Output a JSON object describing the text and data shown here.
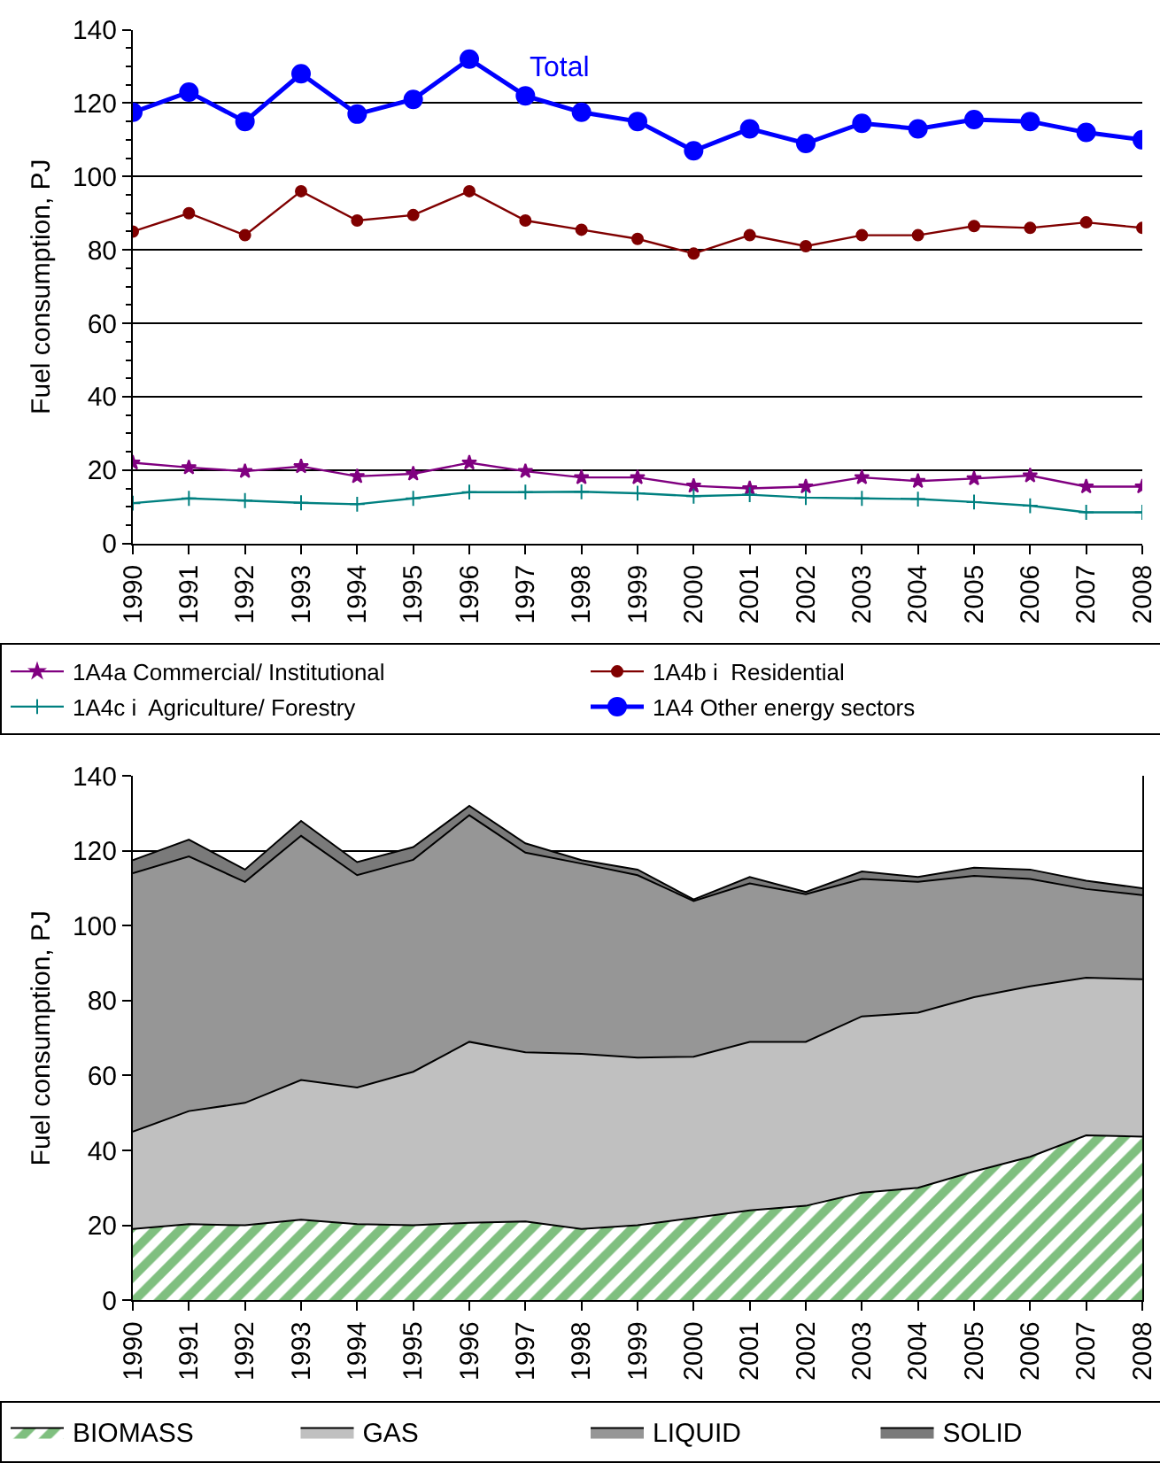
{
  "chart_data": [
    {
      "type": "line",
      "ylabel": "Fuel consumption, PJ",
      "categories": [
        "1990",
        "1991",
        "1992",
        "1993",
        "1994",
        "1995",
        "1996",
        "1997",
        "1998",
        "1999",
        "2000",
        "2001",
        "2002",
        "2003",
        "2004",
        "2005",
        "2006",
        "2007",
        "2008"
      ],
      "series": [
        {
          "name": "1A4a Commercial/ Institutional",
          "color": "#800080",
          "marker": "star",
          "values": [
            22,
            20.7,
            19.7,
            21,
            18.3,
            19,
            22,
            19.7,
            18,
            18,
            15.7,
            15,
            15.5,
            18,
            17,
            17.7,
            18.5,
            15.5,
            15.5
          ]
        },
        {
          "name": "1A4b i  Residential",
          "color": "#800000",
          "marker": "circle",
          "values": [
            85,
            90,
            84,
            96,
            88,
            89.5,
            96,
            88,
            85.5,
            83,
            79,
            84,
            81,
            84,
            84,
            86.5,
            86,
            87.5,
            86
          ]
        },
        {
          "name": "1A4c i  Agriculture/ Forestry",
          "color": "#008080",
          "marker": "cross",
          "values": [
            11,
            12.3,
            11.7,
            11.1,
            10.7,
            12.3,
            14,
            14,
            14.1,
            13.7,
            12.9,
            13.3,
            12.5,
            12.3,
            12.1,
            11.3,
            10.3,
            8.5,
            8.5
          ]
        },
        {
          "name": "1A4 Other energy sectors",
          "color": "#0000ff",
          "marker": "circle",
          "values": [
            117.5,
            123,
            115,
            128,
            117,
            121,
            132,
            122,
            117.5,
            115,
            107,
            113,
            109,
            114.5,
            113,
            115.5,
            115,
            112,
            110
          ]
        }
      ],
      "annotations": [
        "Total"
      ],
      "ylim": [
        0,
        140
      ],
      "yticks": [
        0,
        20,
        40,
        60,
        80,
        100,
        120,
        140
      ],
      "grid": "y",
      "legend": "bottom"
    },
    {
      "type": "area",
      "stacked": true,
      "ylabel": "Fuel consumption, PJ",
      "categories": [
        "1990",
        "1991",
        "1992",
        "1993",
        "1994",
        "1995",
        "1996",
        "1997",
        "1998",
        "1999",
        "2000",
        "2001",
        "2002",
        "2003",
        "2004",
        "2005",
        "2006",
        "2007",
        "2008"
      ],
      "series": [
        {
          "name": "BIOMASS",
          "color": "#008000",
          "values": [
            19,
            20.3,
            20,
            21.5,
            20.3,
            20,
            20.7,
            21,
            19,
            20,
            22,
            24,
            25.2,
            28.7,
            30,
            34.4,
            38.3,
            44,
            43.7
          ]
        },
        {
          "name": "GAS",
          "color": "#c0c0c0",
          "values": [
            26,
            30.2,
            32.7,
            37.3,
            36.5,
            41,
            48.3,
            45.2,
            46.8,
            44.8,
            43,
            45,
            43.8,
            47.1,
            46.8,
            46.5,
            45.5,
            42.1,
            42
          ]
        },
        {
          "name": "LIQUID",
          "color": "#969696",
          "values": [
            69,
            68,
            59,
            65.2,
            56.7,
            56.6,
            60.5,
            53.3,
            50.8,
            48.7,
            41.6,
            42.3,
            39.4,
            36.7,
            34.9,
            32.4,
            28.7,
            23.7,
            22.5
          ]
        },
        {
          "name": "SOLID",
          "color": "#7a7a7a",
          "values": [
            3.5,
            4.5,
            3.3,
            4,
            3.5,
            3.4,
            2.5,
            2.5,
            0.9,
            1.5,
            0.4,
            1.7,
            0.6,
            2,
            1.3,
            2.2,
            2.5,
            2.2,
            1.8
          ]
        }
      ],
      "ylim": [
        0,
        140
      ],
      "yticks": [
        0,
        20,
        40,
        60,
        80,
        100,
        120,
        140
      ],
      "grid": "y",
      "legend": "bottom"
    }
  ]
}
